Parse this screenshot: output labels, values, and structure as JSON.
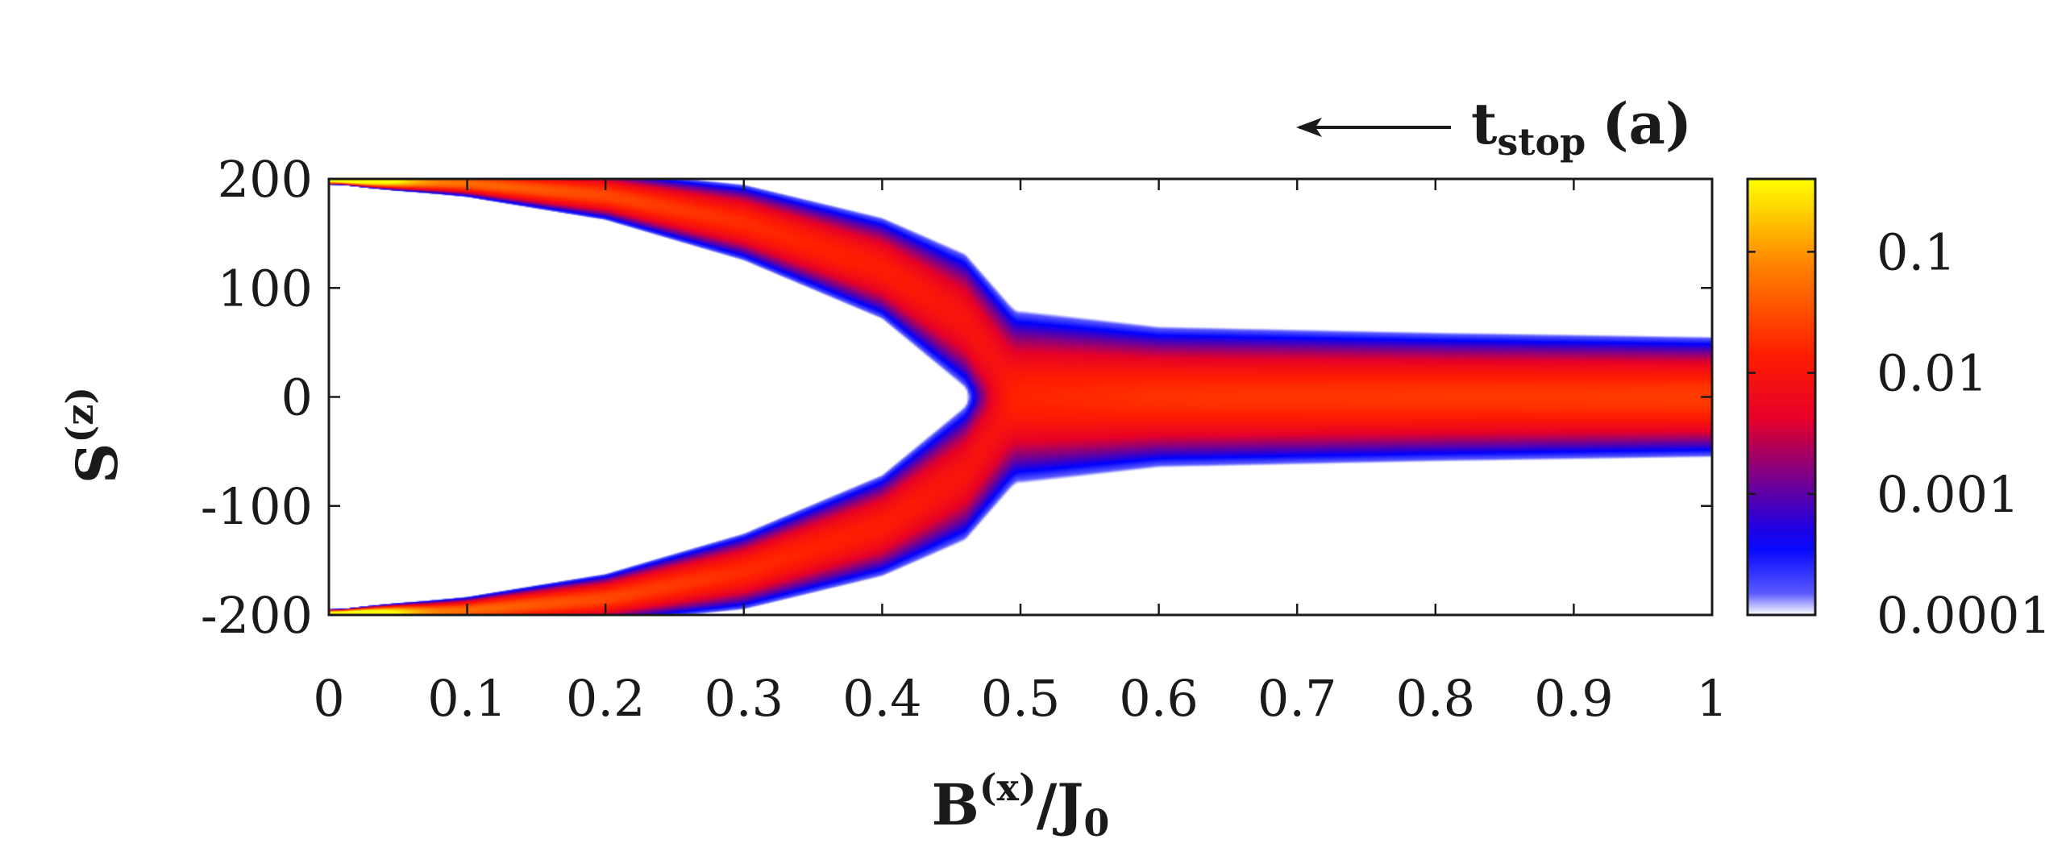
{
  "chart_data": {
    "type": "heatmap",
    "xlabel": {
      "base": "B",
      "sup": "(x)",
      "rest": "/J",
      "sub": "0"
    },
    "ylabel": {
      "base": "S",
      "sup": "(z)"
    },
    "annotation": {
      "main": "t",
      "sub": "stop",
      "panel": "(a)",
      "arrow": "left"
    },
    "xlim": [
      0,
      1
    ],
    "ylim": [
      -200,
      200
    ],
    "x_ticks": [
      0,
      0.1,
      0.2,
      0.3,
      0.4,
      0.5,
      0.6,
      0.7,
      0.8,
      0.9,
      1
    ],
    "x_tick_labels": [
      "0",
      "0.1",
      "0.2",
      "0.3",
      "0.4",
      "0.5",
      "0.6",
      "0.7",
      "0.8",
      "0.9",
      "1"
    ],
    "y_ticks": [
      200,
      100,
      0,
      -100,
      -200
    ],
    "y_tick_labels": [
      "200",
      "100",
      "0",
      "-100",
      "-200"
    ],
    "colorbar": {
      "scale": "log",
      "range": [
        0.0001,
        0.4
      ],
      "ticks": [
        0.1,
        0.01,
        0.001,
        0.0001
      ],
      "tick_labels": [
        "0.1",
        "0.01",
        "0.001",
        "0.0001"
      ],
      "colors": [
        "#ffffff",
        "#0000ff",
        "#ff0000",
        "#ff6600",
        "#ffff00"
      ]
    },
    "distribution": {
      "description_points": [
        {
          "x": 0.0,
          "peaks": [
            200,
            -200
          ],
          "half_width": 2
        },
        {
          "x": 0.1,
          "peaks": [
            196,
            -196
          ],
          "half_width": 8
        },
        {
          "x": 0.2,
          "peaks": [
            185,
            -185
          ],
          "half_width": 15
        },
        {
          "x": 0.3,
          "peaks": [
            160,
            -160
          ],
          "half_width": 24
        },
        {
          "x": 0.4,
          "peaks": [
            118,
            -118
          ],
          "half_width": 33
        },
        {
          "x": 0.46,
          "peaks": [
            70,
            -70
          ],
          "half_width": 45
        },
        {
          "x": 0.5,
          "peaks": [
            0
          ],
          "half_width": 55
        },
        {
          "x": 0.6,
          "peaks": [
            0
          ],
          "half_width": 44
        },
        {
          "x": 0.8,
          "peaks": [
            0
          ],
          "half_width": 40
        },
        {
          "x": 1.0,
          "peaks": [
            0
          ],
          "half_width": 37
        }
      ]
    }
  }
}
